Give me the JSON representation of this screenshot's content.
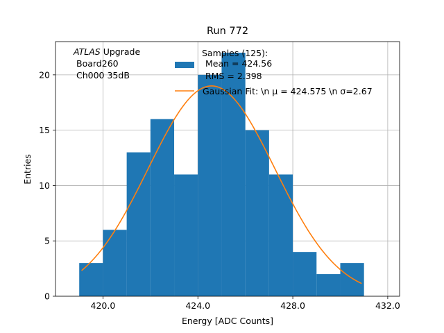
{
  "chart_data": {
    "type": "histogram",
    "title": "Run 772",
    "xlabel": "Energy [ADC Counts]",
    "ylabel": "Entries",
    "xlim": [
      418.0,
      432.5
    ],
    "ylim": [
      0,
      23
    ],
    "xticks": [
      420.0,
      424.0,
      428.0,
      432.0
    ],
    "xtick_labels": [
      "420.0",
      "424.0",
      "428.0",
      "432.0"
    ],
    "yticks": [
      0,
      5,
      10,
      15,
      20
    ],
    "ytick_labels": [
      "0",
      "5",
      "10",
      "15",
      "20"
    ],
    "grid": true,
    "bins": [
      {
        "x0": 419.0,
        "x1": 420.0,
        "count": 3
      },
      {
        "x0": 420.0,
        "x1": 421.0,
        "count": 6
      },
      {
        "x0": 421.0,
        "x1": 422.0,
        "count": 13
      },
      {
        "x0": 422.0,
        "x1": 423.0,
        "count": 16
      },
      {
        "x0": 423.0,
        "x1": 424.0,
        "count": 11
      },
      {
        "x0": 424.0,
        "x1": 425.0,
        "count": 20
      },
      {
        "x0": 425.0,
        "x1": 426.0,
        "count": 22
      },
      {
        "x0": 426.0,
        "x1": 427.0,
        "count": 15
      },
      {
        "x0": 427.0,
        "x1": 428.0,
        "count": 11
      },
      {
        "x0": 428.0,
        "x1": 429.0,
        "count": 4
      },
      {
        "x0": 429.0,
        "x1": 430.0,
        "count": 2
      },
      {
        "x0": 430.0,
        "x1": 431.0,
        "count": 3
      }
    ],
    "fit": {
      "type": "gaussian",
      "mu": 424.575,
      "sigma": 2.67,
      "amplitude": 19.0,
      "x_range": [
        419.1,
        430.9
      ]
    },
    "colors": {
      "histogram": "#1f77b4",
      "fit": "#ff7f0e",
      "grid": "#b0b0b0"
    },
    "legend": {
      "placement": "top-center",
      "title": "Samples (125):",
      "entries": [
        {
          "kind": "patch",
          "lines": [
            "Mean = 424.56",
            "RMS = 2.398"
          ]
        },
        {
          "kind": "line",
          "lines": [
            "Gaussian Fit: \\n μ = 424.575 \\n σ=2.67"
          ]
        }
      ]
    },
    "annotation": {
      "atlas_italic": "ATLAS",
      "atlas_rest": " Upgrade",
      "line2": "Board260",
      "line3": "Ch000 35dB"
    }
  }
}
